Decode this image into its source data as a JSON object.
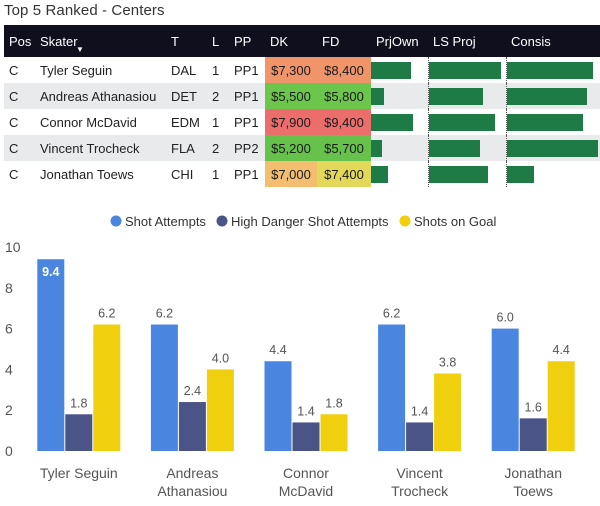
{
  "title": "Top 5 Ranked - Centers",
  "table": {
    "headers": [
      "Pos",
      "Skater",
      "T",
      "L",
      "PP",
      "DK",
      "FD",
      "PrjOwn",
      "LS Proj",
      "Consis"
    ],
    "rows": [
      {
        "pos": "C",
        "skater": "Tyler Seguin",
        "team": "DAL",
        "line": "1",
        "pp": "PP1",
        "dk": "$7,300",
        "fd": "$8,400",
        "dk_color": "#f0956a",
        "fd_color": "#f0956a",
        "prjown": 0.74,
        "lsproj": 0.98,
        "consis": 0.95
      },
      {
        "pos": "C",
        "skater": "Andreas Athanasiou",
        "team": "DET",
        "line": "2",
        "pp": "PP1",
        "dk": "$5,500",
        "fd": "$5,800",
        "dk_color": "#6cc64c",
        "fd_color": "#6cc64c",
        "prjown": 0.25,
        "lsproj": 0.73,
        "consis": 0.88
      },
      {
        "pos": "C",
        "skater": "Connor McDavid",
        "team": "EDM",
        "line": "1",
        "pp": "PP1",
        "dk": "$7,900",
        "fd": "$9,400",
        "dk_color": "#ec6e6c",
        "fd_color": "#ec6e6c",
        "prjown": 0.78,
        "lsproj": 0.9,
        "consis": 0.84
      },
      {
        "pos": "C",
        "skater": "Vincent Trocheck",
        "team": "FLA",
        "line": "2",
        "pp": "PP2",
        "dk": "$5,200",
        "fd": "$5,700",
        "dk_color": "#66c24a",
        "fd_color": "#66c24a",
        "prjown": 0.2,
        "lsproj": 0.7,
        "consis": 1.0
      },
      {
        "pos": "C",
        "skater": "Jonathan Toews",
        "team": "CHI",
        "line": "1",
        "pp": "PP1",
        "dk": "$7,000",
        "fd": "$7,400",
        "dk_color": "#f3be70",
        "fd_color": "#e2d95a",
        "prjown": 0.32,
        "lsproj": 0.81,
        "consis": 0.3
      }
    ]
  },
  "chart_data": {
    "type": "bar",
    "categories": [
      "Tyler Seguin",
      "Andreas Athanasiou",
      "Connor McDavid",
      "Vincent Trocheck",
      "Jonathan Toews"
    ],
    "category_lines": [
      [
        "Tyler Seguin"
      ],
      [
        "Andreas",
        "Athanasiou"
      ],
      [
        "Connor",
        "McDavid"
      ],
      [
        "Vincent",
        "Trocheck"
      ],
      [
        "Jonathan",
        "Toews"
      ]
    ],
    "series": [
      {
        "name": "Shot Attempts",
        "color": "#4a86e0",
        "values": [
          9.4,
          6.2,
          4.4,
          6.2,
          6.0
        ]
      },
      {
        "name": "High Danger Shot Attempts",
        "color": "#4b5486",
        "values": [
          1.8,
          2.4,
          1.4,
          1.4,
          1.6
        ]
      },
      {
        "name": "Shots on Goal",
        "color": "#f0cf0e",
        "values": [
          6.2,
          4.0,
          1.8,
          3.8,
          4.4
        ]
      }
    ],
    "value_labels": [
      [
        "9.4",
        "6.2",
        "4.4",
        "6.2",
        "6.0"
      ],
      [
        "1.8",
        "2.4",
        "1.4",
        "1.4",
        "1.6"
      ],
      [
        "6.2",
        "4.0",
        "1.8",
        "3.8",
        "4.4"
      ]
    ],
    "ylim": [
      0,
      10
    ],
    "yticks": [
      0,
      2,
      4,
      6,
      8,
      10
    ],
    "ytick_labels": [
      "0",
      "2",
      "4",
      "6",
      "8",
      "10"
    ],
    "legend_position": "top",
    "title": "",
    "xlabel": "",
    "ylabel": ""
  }
}
